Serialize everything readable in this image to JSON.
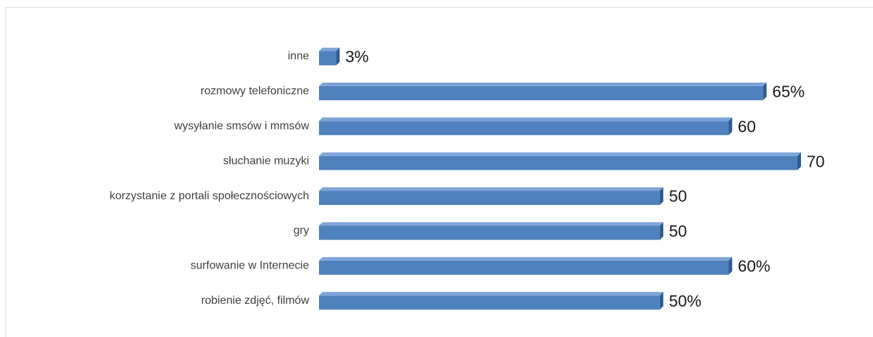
{
  "chart_data": {
    "type": "bar",
    "orientation": "horizontal",
    "categories": [
      "inne",
      "rozmowy telefoniczne",
      "wysyłanie smsów i mmsów",
      "słuchanie muzyki",
      "korzystanie z portali społecznościowych",
      "gry",
      "surfowanie w Internecie",
      "robienie zdjęć, filmów"
    ],
    "values": [
      3,
      65,
      60,
      70,
      50,
      50,
      60,
      50
    ],
    "value_labels": [
      "3%",
      "65%",
      "60",
      "70",
      "50",
      "50",
      "60%",
      "50%"
    ],
    "color": "#4f81bd"
  }
}
